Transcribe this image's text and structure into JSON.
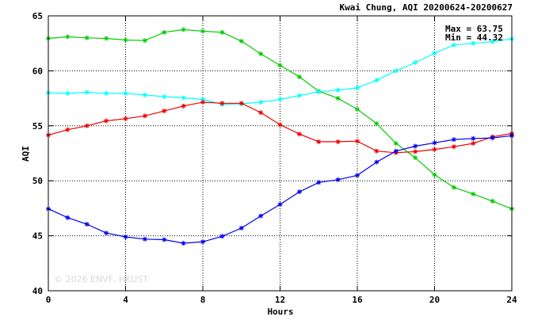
{
  "chart_data": {
    "type": "line",
    "title": "Kwai Chung, AQI 20200624-20200627",
    "xlabel": "Hours",
    "ylabel": "AQI",
    "xlim": [
      0,
      24
    ],
    "ylim": [
      40,
      65
    ],
    "x_ticks": [
      0,
      4,
      8,
      12,
      16,
      20,
      24
    ],
    "y_ticks": [
      40,
      45,
      50,
      55,
      60,
      65
    ],
    "grid": true,
    "grid_style": "dotted",
    "stats": {
      "max_label": "Max = 63.75",
      "min_label": "Min = 44.32"
    },
    "watermark": "© 2026 ENVF, HKUST",
    "x": [
      0,
      1,
      2,
      3,
      4,
      5,
      6,
      7,
      8,
      9,
      10,
      11,
      12,
      13,
      14,
      15,
      16,
      17,
      18,
      19,
      20,
      21,
      22,
      23,
      24
    ],
    "series": [
      {
        "color": "#00cc00",
        "marker": "asterisk",
        "values": [
          62.95,
          63.1,
          63.0,
          62.95,
          62.8,
          62.75,
          63.5,
          63.75,
          63.6,
          63.5,
          62.7,
          61.55,
          60.5,
          59.45,
          58.15,
          57.5,
          56.5,
          55.2,
          53.4,
          52.1,
          50.55,
          49.4,
          48.8,
          48.15,
          47.45
        ]
      },
      {
        "color": "#00ffff",
        "marker": "asterisk",
        "values": [
          58.0,
          57.95,
          58.05,
          57.95,
          57.95,
          57.8,
          57.65,
          57.55,
          57.4,
          56.95,
          57.0,
          57.15,
          57.4,
          57.75,
          58.1,
          58.25,
          58.45,
          59.15,
          60.0,
          60.75,
          61.6,
          62.35,
          62.5,
          62.65,
          62.9
        ]
      },
      {
        "color": "#ee0000",
        "marker": "asterisk",
        "values": [
          54.15,
          54.65,
          55.0,
          55.45,
          55.65,
          55.9,
          56.35,
          56.8,
          57.15,
          57.05,
          57.05,
          56.2,
          55.1,
          54.25,
          53.55,
          53.55,
          53.6,
          52.7,
          52.55,
          52.65,
          52.85,
          53.1,
          53.4,
          54.0,
          54.3
        ]
      },
      {
        "color": "#0000ee",
        "marker": "asterisk",
        "values": [
          47.45,
          46.65,
          46.05,
          45.25,
          44.9,
          44.7,
          44.65,
          44.32,
          44.45,
          44.95,
          45.7,
          46.8,
          47.85,
          49.0,
          49.85,
          50.1,
          50.5,
          51.7,
          52.7,
          53.15,
          53.45,
          53.75,
          53.85,
          53.9,
          54.1
        ]
      }
    ]
  }
}
